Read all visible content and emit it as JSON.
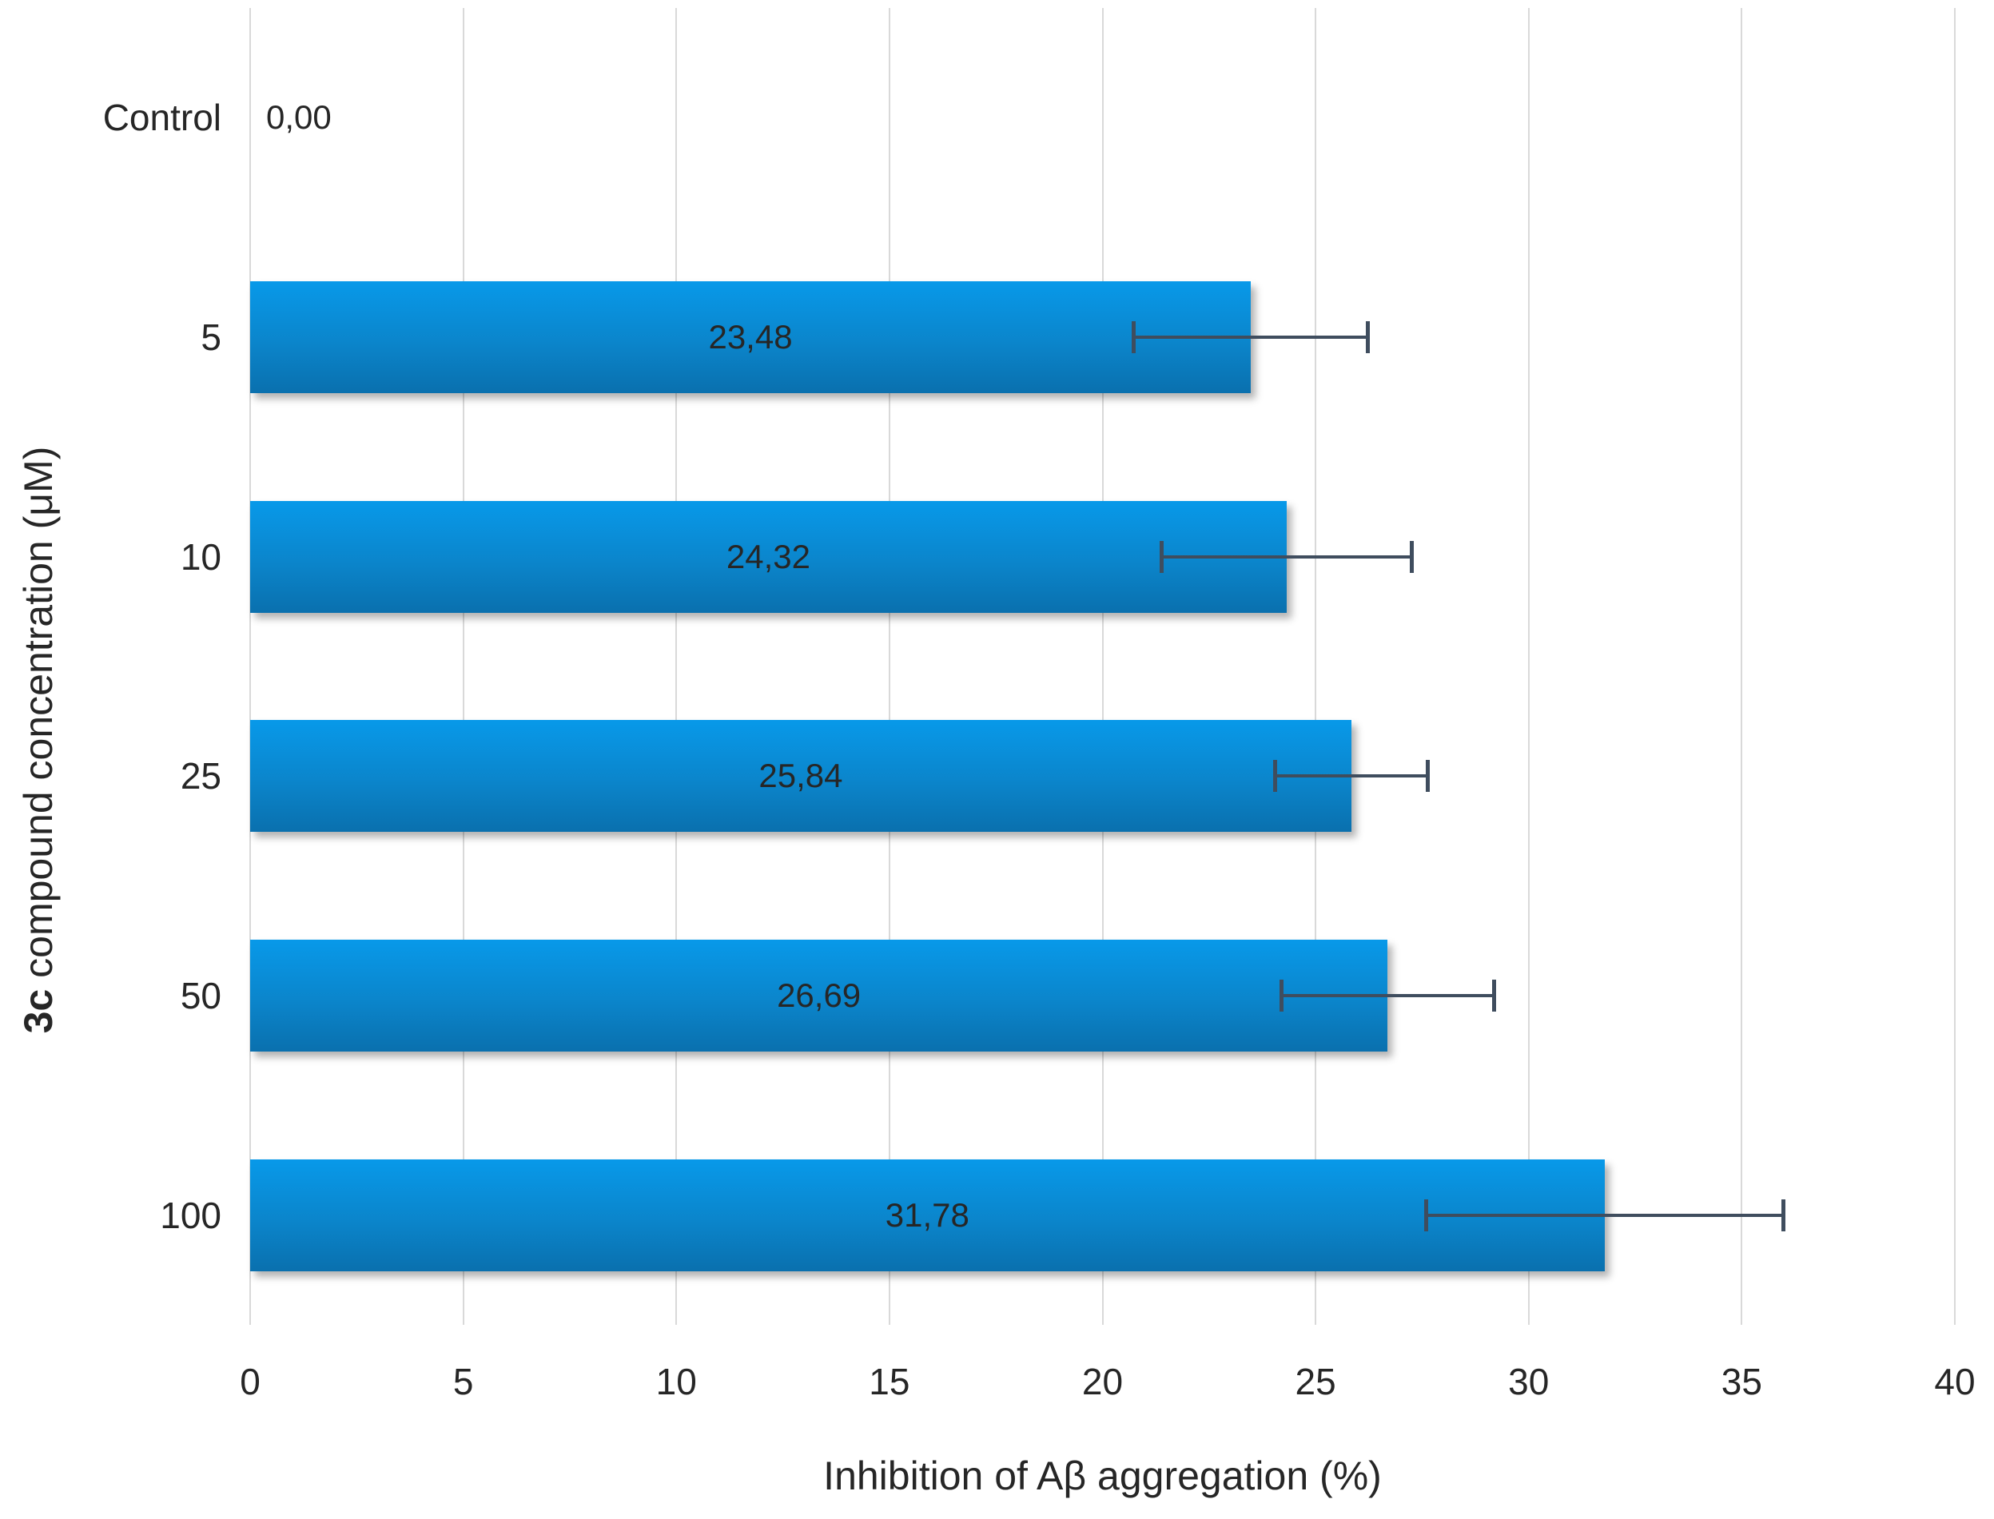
{
  "chart_data": {
    "type": "bar",
    "orientation": "horizontal",
    "categories": [
      "Control",
      "5",
      "10",
      "25",
      "50",
      "100"
    ],
    "values": [
      0.0,
      23.48,
      24.32,
      25.84,
      26.69,
      31.78
    ],
    "value_labels": [
      "0,00",
      "23,48",
      "24,32",
      "25,84",
      "26,69",
      "31,78"
    ],
    "error_plus": [
      0,
      2.75,
      2.95,
      1.8,
      2.5,
      4.2
    ],
    "error_minus": [
      0,
      2.75,
      2.95,
      1.8,
      2.5,
      4.2
    ],
    "xlabel": "Inhibition of Aβ aggregation (%)",
    "ylabel_bold": "3c",
    "ylabel_rest": " compound concentration (μM)",
    "xlim": [
      0,
      40
    ],
    "xticks": [
      0,
      5,
      10,
      15,
      20,
      25,
      30,
      35,
      40
    ],
    "grid": true,
    "legend": "none",
    "colors": {
      "bar_gradient_top": "#0899e9",
      "bar_gradient_bottom": "#0a70ae",
      "gridline": "#d9d9d9",
      "error_bar": "#3f4d5e",
      "text": "#262626",
      "background": "#ffffff"
    }
  }
}
